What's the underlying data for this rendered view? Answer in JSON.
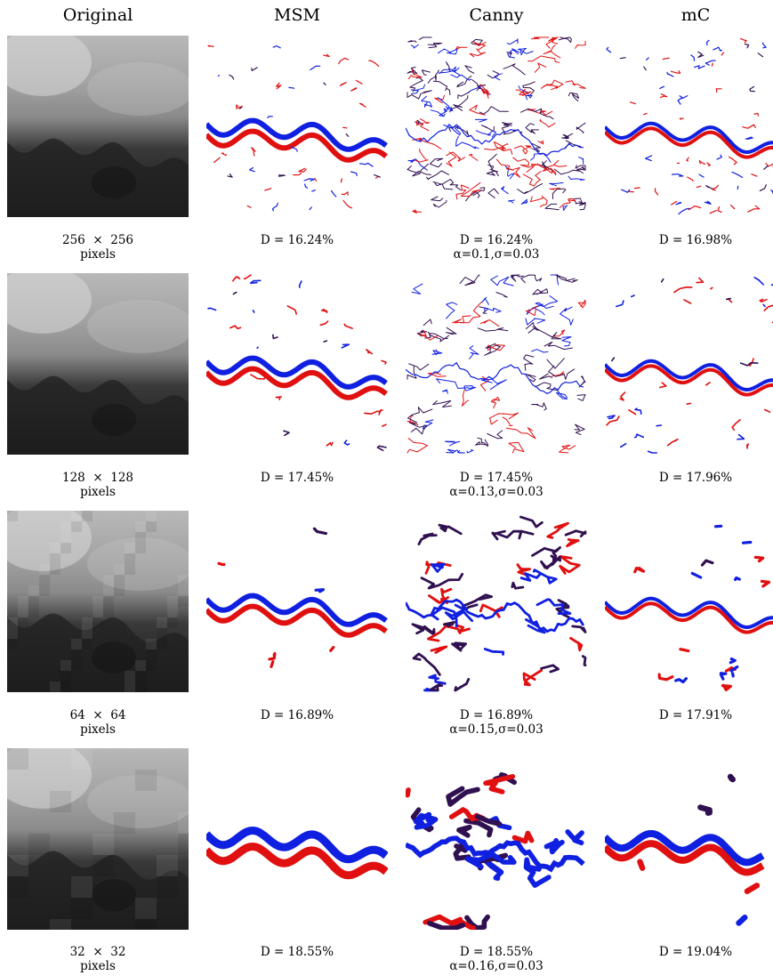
{
  "figure": {
    "column_headers": [
      "Original",
      "MSM",
      "Canny",
      "mC"
    ],
    "rows": [
      {
        "resolution_label": "256  ×  256",
        "unit_label": "pixels",
        "msm_caption": "D = 16.24%",
        "canny_caption": "D = 16.24%",
        "canny_params": "α=0.1,σ=0.03",
        "mc_caption": "D = 16.98%"
      },
      {
        "resolution_label": "128  ×  128",
        "unit_label": "pixels",
        "msm_caption": "D = 17.45%",
        "canny_caption": "D = 17.45%",
        "canny_params": "α=0.13,σ=0.03",
        "mc_caption": "D = 17.96%"
      },
      {
        "resolution_label": "64  ×  64",
        "unit_label": "pixels",
        "msm_caption": "D = 16.89%",
        "canny_caption": "D = 16.89%",
        "canny_params": "α=0.15,σ=0.03",
        "mc_caption": "D = 17.91%"
      },
      {
        "resolution_label": "32  ×  32",
        "unit_label": "pixels",
        "msm_caption": "D = 18.55%",
        "canny_caption": "D = 18.55%",
        "canny_params": "α=0.16,σ=0.03",
        "mc_caption": "D = 19.04%"
      }
    ],
    "colors": {
      "edge_red": "#e01010",
      "edge_blue": "#1020e0",
      "edge_dark": "#301050"
    }
  }
}
